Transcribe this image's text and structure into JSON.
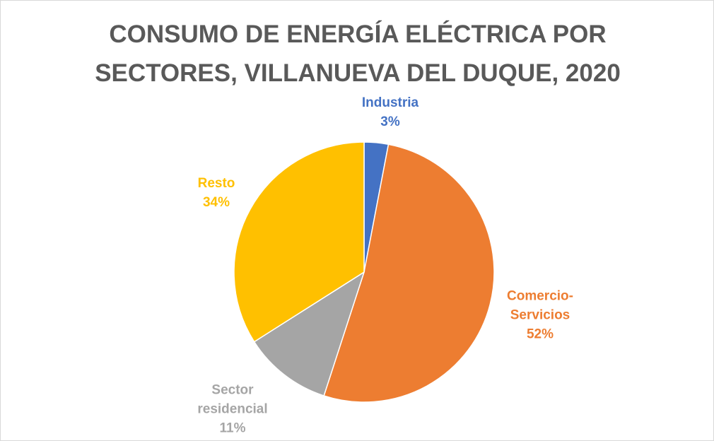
{
  "chart_data": {
    "type": "pie",
    "title": "CONSUMO DE ENERGÍA ELÉCTRICA POR SECTORES, VILLANUEVA DEL DUQUE, 2020",
    "categories": [
      "Industria",
      "Comercio-Servicios",
      "Sector residencial",
      "Resto"
    ],
    "values": [
      3,
      52,
      11,
      34
    ],
    "value_labels": [
      "3%",
      "52%",
      "11%",
      "34%"
    ],
    "colors": [
      "#4472c4",
      "#ed7d31",
      "#a5a5a5",
      "#ffc000"
    ]
  }
}
